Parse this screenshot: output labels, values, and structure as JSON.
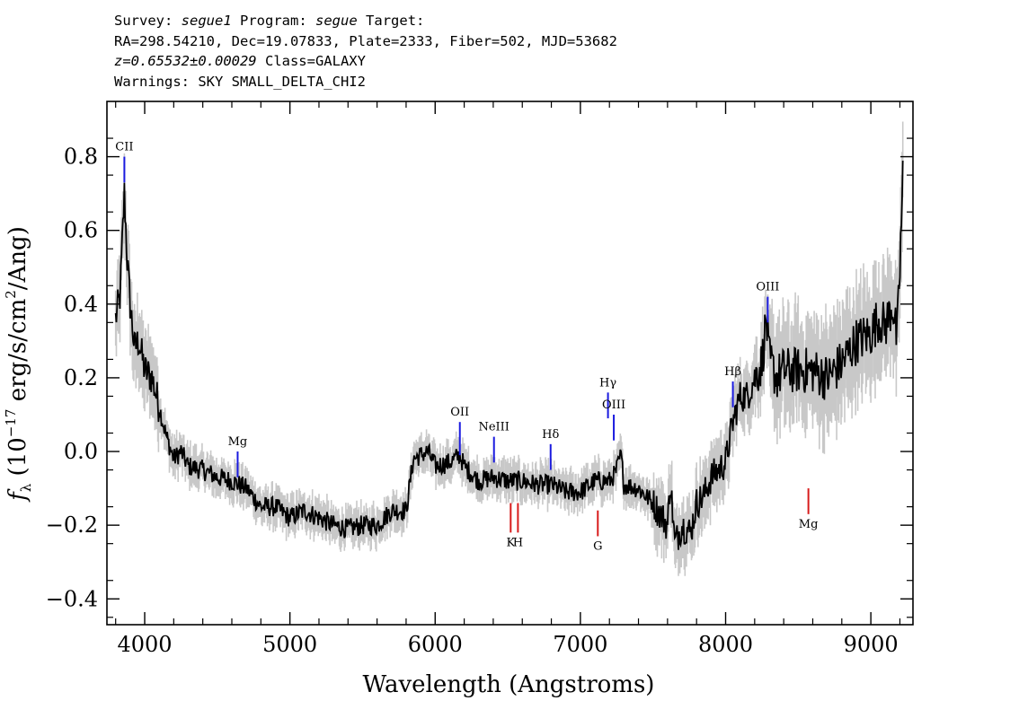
{
  "header": {
    "survey_label": "Survey:",
    "survey": "segue1",
    "program_label": "Program:",
    "program": "segue",
    "target_label": "Target:",
    "line2": "RA=298.54210, Dec=19.07833, Plate=2333, Fiber=502, MJD=53682",
    "z": "z=0.65532±0.00029",
    "class": "Class=GALAXY",
    "warnings": "Warnings: SKY SMALL_DELTA_CHI2"
  },
  "chart_data": {
    "type": "line",
    "xlabel": "Wavelength (Angstroms)",
    "ylabel_prefix": "f",
    "ylabel_sub": "λ",
    "ylabel_rest": "(10",
    "ylabel_exp": "−17",
    "ylabel_units": "erg/s/cm",
    "ylabel_sq": "2",
    "ylabel_end": "/Ang)",
    "xlim": [
      3740,
      9290
    ],
    "ylim": [
      -0.47,
      0.95
    ],
    "xticks": [
      4000,
      5000,
      6000,
      7000,
      8000,
      9000
    ],
    "xtick_labels": [
      "4000",
      "5000",
      "6000",
      "7000",
      "8000",
      "9000"
    ],
    "yticks": [
      -0.4,
      -0.2,
      0.0,
      0.2,
      0.4,
      0.6,
      0.8
    ],
    "ytick_labels": [
      "−0.4",
      "−0.2",
      "0.0",
      "0.2",
      "0.4",
      "0.6",
      "0.8"
    ],
    "grid": false,
    "colors": {
      "data": "#000000",
      "error_band": "#c8c8c8",
      "emission": "#1a1adf",
      "absorption": "#d81c1c"
    },
    "series": [
      {
        "x": [
          3800,
          3830,
          3860,
          3880,
          3900,
          3930,
          3960,
          4000,
          4050,
          4100,
          4150,
          4200,
          4250,
          4300,
          4400,
          4500,
          4600,
          4700,
          4800,
          4900,
          5000,
          5100,
          5200,
          5300,
          5400,
          5500,
          5600,
          5700,
          5800,
          5850,
          5900,
          5950,
          6000,
          6100,
          6170,
          6200,
          6300,
          6400,
          6500,
          6600,
          6700,
          6800,
          6900,
          7000,
          7100,
          7200,
          7240,
          7280,
          7300,
          7400,
          7500,
          7600,
          7620,
          7650,
          7700,
          7760,
          7800,
          7850,
          7900,
          8000,
          8050,
          8100,
          8150,
          8200,
          8250,
          8280,
          8300,
          8350,
          8400,
          8500,
          8600,
          8700,
          8800,
          8900,
          9000,
          9050,
          9100,
          9150,
          9180,
          9200,
          9220
        ],
        "y": [
          0.36,
          0.42,
          0.7,
          0.52,
          0.4,
          0.28,
          0.3,
          0.22,
          0.2,
          0.12,
          0.04,
          -0.02,
          0.0,
          -0.04,
          -0.05,
          -0.07,
          -0.08,
          -0.1,
          -0.15,
          -0.15,
          -0.18,
          -0.16,
          -0.18,
          -0.2,
          -0.21,
          -0.2,
          -0.2,
          -0.16,
          -0.16,
          -0.02,
          -0.01,
          0.0,
          -0.04,
          -0.03,
          -0.01,
          -0.04,
          -0.08,
          -0.07,
          -0.08,
          -0.08,
          -0.09,
          -0.09,
          -0.11,
          -0.11,
          -0.08,
          -0.08,
          -0.06,
          -0.01,
          -0.09,
          -0.1,
          -0.14,
          -0.2,
          -0.08,
          -0.25,
          -0.2,
          -0.22,
          -0.14,
          -0.12,
          -0.07,
          -0.03,
          0.08,
          0.15,
          0.15,
          0.2,
          0.24,
          0.36,
          0.25,
          0.2,
          0.22,
          0.22,
          0.22,
          0.2,
          0.24,
          0.3,
          0.32,
          0.36,
          0.34,
          0.4,
          0.3,
          0.5,
          0.74
        ]
      }
    ],
    "line_markers": [
      {
        "label": "CII",
        "x": 3860,
        "y1": 0.8,
        "y2": 0.73,
        "kind": "emission",
        "label_pos": "above"
      },
      {
        "label": "Mg",
        "x": 4640,
        "y1": 0.0,
        "y2": -0.07,
        "kind": "emission",
        "label_pos": "above"
      },
      {
        "label": "OII",
        "x": 6170,
        "y1": 0.08,
        "y2": -0.01,
        "kind": "emission",
        "label_pos": "above"
      },
      {
        "label": "NeIII",
        "x": 6405,
        "y1": 0.04,
        "y2": -0.03,
        "kind": "emission",
        "label_pos": "above"
      },
      {
        "label": "Hδ",
        "x": 6795,
        "y1": 0.02,
        "y2": -0.05,
        "kind": "emission",
        "label_pos": "above"
      },
      {
        "label": "Hγ",
        "x": 7190,
        "y1": 0.16,
        "y2": 0.09,
        "kind": "emission",
        "label_pos": "above"
      },
      {
        "label": "OIII",
        "x": 7230,
        "y1": 0.1,
        "y2": 0.03,
        "kind": "emission",
        "label_pos": "above"
      },
      {
        "label": "Hβ",
        "x": 8050,
        "y1": 0.19,
        "y2": 0.12,
        "kind": "emission",
        "label_pos": "above"
      },
      {
        "label": "OIII",
        "x": 8290,
        "y1": 0.42,
        "y2": 0.35,
        "kind": "emission",
        "label_pos": "above"
      },
      {
        "label": "K",
        "x": 6520,
        "y1": -0.14,
        "y2": -0.22,
        "kind": "absorption",
        "label_pos": "below"
      },
      {
        "label": "H",
        "x": 6570,
        "y1": -0.14,
        "y2": -0.22,
        "kind": "absorption",
        "label_pos": "below"
      },
      {
        "label": "G",
        "x": 7120,
        "y1": -0.16,
        "y2": -0.23,
        "kind": "absorption",
        "label_pos": "below"
      },
      {
        "label": "Mg",
        "x": 8570,
        "y1": -0.1,
        "y2": -0.17,
        "kind": "absorption",
        "label_pos": "below"
      }
    ]
  }
}
